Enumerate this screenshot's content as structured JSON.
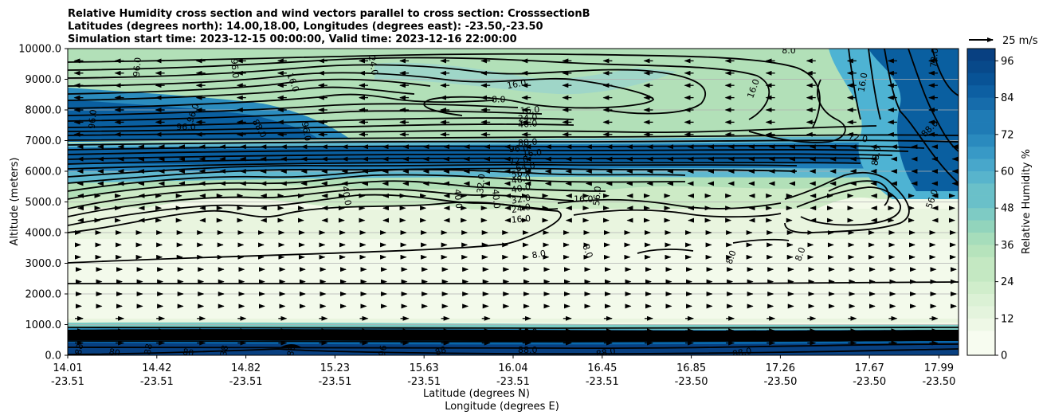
{
  "chart_data": {
    "type": "contour",
    "title_lines": [
      "Relative Humidity cross section and wind vectors parallel to cross section: CrosssectionB",
      "Latitudes (degrees north): 14.00,18.00, Longitudes (degrees east): -23.50,-23.50",
      "Simulation start time: 2023-12-15 00:00:00, Valid time: 2023-12-16 22:00:00"
    ],
    "ylabel": "Altitude (meters)",
    "xlabel_lat": "Latitude (degrees N)",
    "xlabel_lon": "Longitude (degrees E)",
    "ylim": [
      0,
      10000
    ],
    "y_ticks": [
      0,
      1000,
      2000,
      3000,
      4000,
      5000,
      6000,
      7000,
      8000,
      9000,
      10000
    ],
    "y_tick_labels": [
      "0.0",
      "1000.0",
      "2000.0",
      "3000.0",
      "4000.0",
      "5000.0",
      "6000.0",
      "7000.0",
      "8000.0",
      "9000.0",
      "10000.0"
    ],
    "x_ticks": [
      {
        "lat": "14.01",
        "lon": "-23.51"
      },
      {
        "lat": "14.42",
        "lon": "-23.51"
      },
      {
        "lat": "14.82",
        "lon": "-23.51"
      },
      {
        "lat": "15.23",
        "lon": "-23.51"
      },
      {
        "lat": "15.63",
        "lon": "-23.51"
      },
      {
        "lat": "16.04",
        "lon": "-23.51"
      },
      {
        "lat": "16.45",
        "lon": "-23.51"
      },
      {
        "lat": "16.85",
        "lon": "-23.50"
      },
      {
        "lat": "17.26",
        "lon": "-23.50"
      },
      {
        "lat": "17.67",
        "lon": "-23.50"
      },
      {
        "lat": "17.99",
        "lon": "-23.50"
      }
    ],
    "x_tick_fractions": [
      0,
      0.1,
      0.2,
      0.3,
      0.4,
      0.5,
      0.6,
      0.7,
      0.8,
      0.9,
      0.978
    ],
    "colorbar": {
      "label": "Relative Humidity %",
      "min": 0,
      "max": 100,
      "tick_values": [
        0,
        12,
        24,
        36,
        48,
        60,
        72,
        84,
        96
      ],
      "tick_labels": [
        "0",
        "12",
        "24",
        "36",
        "48",
        "60",
        "72",
        "84",
        "96"
      ]
    },
    "quiver_key": {
      "label": "25 m/s"
    },
    "contour_level_labels": [
      {
        "text": "96.0",
        "lat": 14.12,
        "alt": 7700,
        "rot": -85
      },
      {
        "text": "96.0",
        "lat": 14.54,
        "alt": 7450,
        "rot": 0
      },
      {
        "text": "96.0",
        "lat": 14.32,
        "alt": 9400,
        "rot": -85
      },
      {
        "text": "96.0",
        "lat": 14.76,
        "alt": 9350,
        "rot": 85
      },
      {
        "text": "96.0",
        "lat": 14.57,
        "alt": 7900,
        "rot": -70
      },
      {
        "text": "88.0",
        "lat": 14.87,
        "alt": 7400,
        "rot": 60
      },
      {
        "text": "96.0",
        "lat": 15.08,
        "alt": 7300,
        "rot": 80
      },
      {
        "text": "16.0",
        "lat": 15.02,
        "alt": 8900,
        "rot": 70
      },
      {
        "text": "24.0",
        "lat": 15.38,
        "alt": 9450,
        "rot": 80
      },
      {
        "text": "40.0",
        "lat": 15.26,
        "alt": 5200,
        "rot": 80
      },
      {
        "text": "16.0",
        "lat": 16.02,
        "alt": 8850,
        "rot": -10
      },
      {
        "text": "8.0",
        "lat": 15.94,
        "alt": 8350,
        "rot": 0
      },
      {
        "text": "16.0",
        "lat": 16.08,
        "alt": 8000,
        "rot": -5
      },
      {
        "text": "24.0",
        "lat": 16.07,
        "alt": 7750,
        "rot": -5
      },
      {
        "text": "40.0",
        "lat": 16.07,
        "alt": 7550,
        "rot": -5
      },
      {
        "text": "88.0",
        "lat": 16.07,
        "alt": 6950,
        "rot": -5
      },
      {
        "text": "96.0",
        "lat": 16.03,
        "alt": 6750,
        "rot": -5
      },
      {
        "text": "16.0",
        "lat": 16.09,
        "alt": 6600,
        "rot": -5
      },
      {
        "text": "72.0",
        "lat": 16.03,
        "alt": 6350,
        "rot": -10
      },
      {
        "text": "64.0",
        "lat": 16.06,
        "alt": 6150,
        "rot": -10
      },
      {
        "text": "56.0",
        "lat": 16.04,
        "alt": 5950,
        "rot": -10
      },
      {
        "text": "48.0",
        "lat": 16.04,
        "alt": 5750,
        "rot": -10
      },
      {
        "text": "40.0",
        "lat": 16.04,
        "alt": 5450,
        "rot": -10
      },
      {
        "text": "32.0",
        "lat": 16.04,
        "alt": 5100,
        "rot": -10
      },
      {
        "text": "24.0",
        "lat": 16.04,
        "alt": 4800,
        "rot": -10
      },
      {
        "text": "16.0",
        "lat": 16.04,
        "alt": 4450,
        "rot": -5
      },
      {
        "text": "16.0",
        "lat": 16.32,
        "alt": 5100,
        "rot": 0
      },
      {
        "text": "8.0",
        "lat": 16.12,
        "alt": 3300,
        "rot": -10
      },
      {
        "text": "8.0",
        "lat": 16.34,
        "alt": 3400,
        "rot": 70
      },
      {
        "text": "8.0",
        "lat": 16.98,
        "alt": 3200,
        "rot": -70
      },
      {
        "text": "8.0",
        "lat": 17.29,
        "alt": 3300,
        "rot": -70
      },
      {
        "text": "32.0",
        "lat": 15.86,
        "alt": 5600,
        "rot": -85
      },
      {
        "text": "40.0",
        "lat": 15.76,
        "alt": 5100,
        "rot": 85
      },
      {
        "text": "40.0",
        "lat": 15.93,
        "alt": 5100,
        "rot": 85
      },
      {
        "text": "56.0",
        "lat": 16.38,
        "alt": 5200,
        "rot": -85
      },
      {
        "text": "16.0",
        "lat": 17.08,
        "alt": 8700,
        "rot": -70
      },
      {
        "text": "16.0",
        "lat": 17.57,
        "alt": 8900,
        "rot": -80
      },
      {
        "text": "72.0",
        "lat": 17.55,
        "alt": 7100,
        "rot": 10
      },
      {
        "text": "88.0",
        "lat": 17.63,
        "alt": 6500,
        "rot": -80
      },
      {
        "text": "88.0",
        "lat": 17.87,
        "alt": 7400,
        "rot": -45
      },
      {
        "text": "56.0",
        "lat": 17.88,
        "alt": 5100,
        "rot": -70
      },
      {
        "text": "72.0",
        "lat": 17.89,
        "alt": 9700,
        "rot": -85
      },
      {
        "text": "8.0",
        "lat": 17.24,
        "alt": 9950,
        "rot": 0
      },
      {
        "text": "16.0",
        "lat": 16.07,
        "alt": 760,
        "rot": 0
      },
      {
        "text": "40.0",
        "lat": 16.07,
        "alt": 550,
        "rot": 0
      },
      {
        "text": "88.0",
        "lat": 16.07,
        "alt": 180,
        "rot": 0
      },
      {
        "text": "88",
        "lat": 14.06,
        "alt": 200,
        "rot": -80
      },
      {
        "text": "80",
        "lat": 14.22,
        "alt": 100,
        "rot": 10
      },
      {
        "text": "88",
        "lat": 14.37,
        "alt": 200,
        "rot": -80
      },
      {
        "text": "38",
        "lat": 14.71,
        "alt": 150,
        "rot": -80
      },
      {
        "text": "80",
        "lat": 14.55,
        "alt": 100,
        "rot": 10
      },
      {
        "text": "88",
        "lat": 15.01,
        "alt": 150,
        "rot": -80
      },
      {
        "text": "96",
        "lat": 15.42,
        "alt": 150,
        "rot": -80
      },
      {
        "text": "88",
        "lat": 15.68,
        "alt": 150,
        "rot": -20
      },
      {
        "text": "88.0",
        "lat": 16.42,
        "alt": 100,
        "rot": -10
      },
      {
        "text": "88.0",
        "lat": 17.03,
        "alt": 100,
        "rot": -10
      }
    ]
  }
}
